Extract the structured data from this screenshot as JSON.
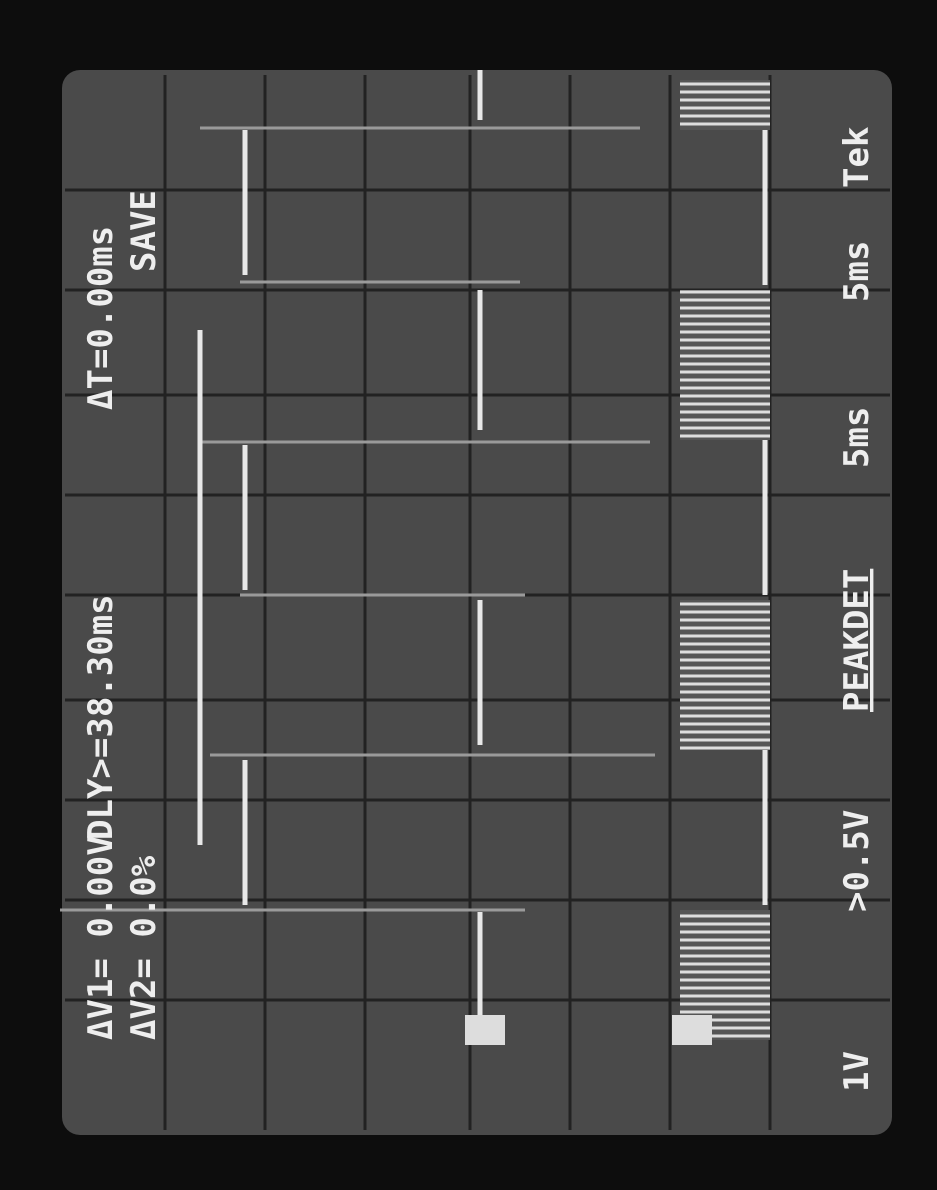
{
  "readouts": {
    "delta_v1": "ΔV1= 0.00V",
    "delta_v2": "ΔV2= 0.0%",
    "delay": "DLY>=38.30ms",
    "delta_t": "ΔT=0.00ms",
    "mode": "SAVE"
  },
  "settings": {
    "ch1_scale": "1V",
    "ch2_scale": ">0.5V",
    "acquisition": "PEAKDET",
    "main_time": "5ms",
    "delayed_time": "5ms",
    "brand": "Tek"
  }
}
